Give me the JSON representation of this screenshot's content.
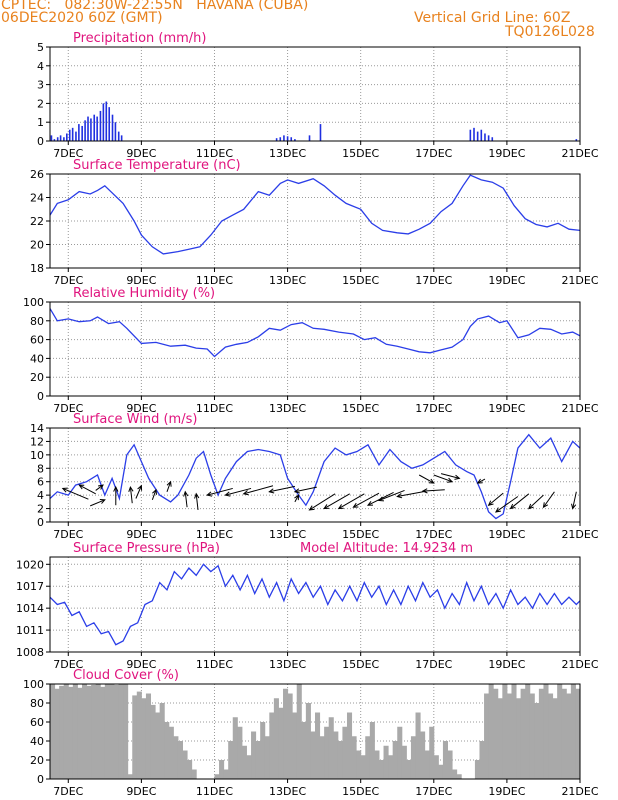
{
  "header": {
    "line1": "CPTEC:   082:30W-22:55N   HAVANA (CUBA)",
    "line2": "06DEC2020 60Z (GMT)",
    "grid_note": "Vertical Grid Line: 60Z",
    "code": "TQ0126L028"
  },
  "colors": {
    "header": "#e8821e",
    "title": "#e0147e",
    "line": "#2b3ee8",
    "precip": "#1f2fe0",
    "cloud": "#a9a9a9"
  },
  "chart_data": [
    {
      "id": "precip",
      "type": "bar",
      "title": "Precipitation (mm/h)",
      "xlabel": "",
      "ylabel": "",
      "xlim": [
        6.5,
        21
      ],
      "ylim": [
        0,
        5
      ],
      "x_ticks": [
        "7DEC",
        "9DEC",
        "11DEC",
        "13DEC",
        "15DEC",
        "17DEC",
        "19DEC",
        "21DEC"
      ],
      "y_ticks": [
        0,
        1,
        2,
        3,
        4,
        5
      ],
      "x": [
        6.54,
        6.62,
        6.71,
        6.79,
        6.88,
        6.96,
        7.04,
        7.12,
        7.21,
        7.29,
        7.38,
        7.46,
        7.54,
        7.62,
        7.71,
        7.79,
        7.88,
        7.96,
        8.04,
        8.12,
        8.21,
        8.29,
        8.38,
        8.46,
        12.7,
        12.8,
        12.9,
        13.0,
        13.1,
        13.2,
        13.6,
        13.9,
        18.0,
        18.1,
        18.2,
        18.3,
        18.4,
        18.5,
        18.6,
        20.9
      ],
      "values": [
        0.3,
        0.1,
        0.2,
        0.3,
        0.2,
        0.4,
        0.6,
        0.7,
        0.5,
        0.9,
        0.8,
        1.1,
        1.3,
        1.2,
        1.4,
        1.3,
        1.6,
        2.0,
        2.1,
        1.8,
        1.4,
        1.0,
        0.5,
        0.3,
        0.15,
        0.2,
        0.3,
        0.25,
        0.2,
        0.1,
        0.3,
        0.9,
        0.6,
        0.7,
        0.5,
        0.6,
        0.4,
        0.3,
        0.2,
        0.1
      ]
    },
    {
      "id": "temp",
      "type": "line",
      "title": "Surface Temperature (nC)",
      "xlabel": "",
      "ylabel": "",
      "xlim": [
        6.5,
        21
      ],
      "ylim": [
        18,
        26
      ],
      "x_ticks": [
        "7DEC",
        "9DEC",
        "11DEC",
        "13DEC",
        "15DEC",
        "17DEC",
        "19DEC",
        "21DEC"
      ],
      "y_ticks": [
        18,
        20,
        22,
        24,
        26
      ],
      "series": [
        {
          "x": [
            6.5,
            6.7,
            7.0,
            7.3,
            7.6,
            7.8,
            8.0,
            8.2,
            8.5,
            8.8,
            9.0,
            9.3,
            9.6,
            10.0,
            10.3,
            10.6,
            10.9,
            11.2,
            11.5,
            11.8,
            12.2,
            12.5,
            12.8,
            13.0,
            13.3,
            13.7,
            14.0,
            14.3,
            14.6,
            15.0,
            15.3,
            15.6,
            16.0,
            16.3,
            16.6,
            16.9,
            17.2,
            17.5,
            17.8,
            18.0,
            18.3,
            18.6,
            18.9,
            19.2,
            19.5,
            19.8,
            20.1,
            20.4,
            20.7,
            21.0
          ],
          "y": [
            22.5,
            23.5,
            23.8,
            24.5,
            24.3,
            24.6,
            25.0,
            24.4,
            23.5,
            22.0,
            20.8,
            19.8,
            19.2,
            19.4,
            19.6,
            19.8,
            20.8,
            22.0,
            22.5,
            23.0,
            24.5,
            24.2,
            25.2,
            25.5,
            25.2,
            25.6,
            25.0,
            24.2,
            23.5,
            23.0,
            21.8,
            21.2,
            21.0,
            20.9,
            21.3,
            21.8,
            22.8,
            23.5,
            25.0,
            25.9,
            25.5,
            25.3,
            24.8,
            23.3,
            22.2,
            21.7,
            21.5,
            21.8,
            21.3,
            21.2
          ]
        }
      ]
    },
    {
      "id": "rh",
      "type": "line",
      "title": "Relative Humidity (%)",
      "xlabel": "",
      "ylabel": "",
      "xlim": [
        6.5,
        21
      ],
      "ylim": [
        0,
        100
      ],
      "x_ticks": [
        "7DEC",
        "9DEC",
        "11DEC",
        "13DEC",
        "15DEC",
        "17DEC",
        "19DEC",
        "21DEC"
      ],
      "y_ticks": [
        0,
        20,
        40,
        60,
        80,
        100
      ],
      "series": [
        {
          "x": [
            6.5,
            6.7,
            7.0,
            7.3,
            7.6,
            7.8,
            8.1,
            8.4,
            8.6,
            9.0,
            9.4,
            9.8,
            10.2,
            10.5,
            10.8,
            11.0,
            11.3,
            11.6,
            11.9,
            12.2,
            12.5,
            12.8,
            13.1,
            13.4,
            13.7,
            14.0,
            14.4,
            14.8,
            15.1,
            15.4,
            15.7,
            16.0,
            16.3,
            16.6,
            16.9,
            17.2,
            17.5,
            17.8,
            18.0,
            18.2,
            18.5,
            18.8,
            19.0,
            19.3,
            19.6,
            19.9,
            20.2,
            20.5,
            20.8,
            21.0
          ],
          "y": [
            93,
            80,
            82,
            79,
            80,
            84,
            77,
            79,
            72,
            56,
            57,
            53,
            54,
            51,
            50,
            42,
            52,
            55,
            57,
            63,
            72,
            70,
            76,
            78,
            72,
            71,
            68,
            66,
            60,
            62,
            55,
            53,
            50,
            47,
            46,
            49,
            52,
            60,
            74,
            82,
            85,
            78,
            80,
            62,
            65,
            72,
            71,
            66,
            68,
            64
          ]
        }
      ]
    },
    {
      "id": "wind",
      "type": "line",
      "title": "Surface Wind (m/s)",
      "xlabel": "",
      "ylabel": "",
      "xlim": [
        6.5,
        21
      ],
      "ylim": [
        0,
        14
      ],
      "x_ticks": [
        "7DEC",
        "9DEC",
        "11DEC",
        "13DEC",
        "15DEC",
        "17DEC",
        "19DEC",
        "21DEC"
      ],
      "y_ticks": [
        0,
        2,
        4,
        6,
        8,
        10,
        12,
        14
      ],
      "series": [
        {
          "x": [
            6.5,
            6.7,
            7.0,
            7.2,
            7.5,
            7.8,
            8.0,
            8.2,
            8.4,
            8.6,
            8.8,
            9.0,
            9.2,
            9.5,
            9.8,
            10.0,
            10.3,
            10.5,
            10.7,
            10.9,
            11.1,
            11.3,
            11.6,
            11.9,
            12.2,
            12.5,
            12.8,
            13.0,
            13.3,
            13.5,
            13.7,
            14.0,
            14.3,
            14.6,
            14.9,
            15.2,
            15.5,
            15.8,
            16.1,
            16.4,
            16.7,
            17.0,
            17.3,
            17.6,
            17.9,
            18.1,
            18.3,
            18.5,
            18.7,
            18.9,
            19.1,
            19.3,
            19.6,
            19.9,
            20.2,
            20.5,
            20.8,
            21.0
          ],
          "y": [
            3.5,
            4.5,
            4.0,
            5.5,
            6.0,
            7.0,
            4.0,
            6.5,
            3.5,
            10.0,
            11.5,
            9.0,
            6.5,
            4.0,
            3.0,
            4.0,
            7.0,
            9.5,
            10.5,
            7.0,
            4.0,
            6.5,
            9.0,
            10.5,
            10.8,
            10.5,
            10.0,
            6.5,
            4.0,
            2.5,
            4.5,
            9.0,
            11.0,
            10.0,
            10.5,
            11.5,
            8.5,
            10.8,
            9.0,
            8.0,
            8.5,
            9.5,
            10.5,
            8.5,
            7.5,
            7.0,
            4.5,
            1.5,
            0.5,
            1.2,
            6.0,
            11.0,
            13.0,
            11.0,
            12.5,
            9.0,
            12.0,
            11.0
          ]
        }
      ]
    },
    {
      "id": "pres",
      "type": "line",
      "title": "Surface Pressure (hPa)",
      "annotation": "Model Altitude: 14.9234 m",
      "xlabel": "",
      "ylabel": "",
      "xlim": [
        6.5,
        21
      ],
      "ylim": [
        1008,
        1021
      ],
      "x_ticks": [
        "7DEC",
        "9DEC",
        "11DEC",
        "13DEC",
        "15DEC",
        "17DEC",
        "19DEC",
        "21DEC"
      ],
      "y_ticks": [
        1008,
        1011,
        1014,
        1017,
        1020
      ],
      "series": [
        {
          "x": [
            6.5,
            6.7,
            6.9,
            7.1,
            7.3,
            7.5,
            7.7,
            7.9,
            8.1,
            8.3,
            8.5,
            8.7,
            8.9,
            9.1,
            9.3,
            9.5,
            9.7,
            9.9,
            10.1,
            10.3,
            10.5,
            10.7,
            10.9,
            11.1,
            11.3,
            11.5,
            11.7,
            11.9,
            12.1,
            12.3,
            12.5,
            12.7,
            12.9,
            13.1,
            13.3,
            13.5,
            13.7,
            13.9,
            14.1,
            14.3,
            14.5,
            14.7,
            14.9,
            15.1,
            15.3,
            15.5,
            15.7,
            15.9,
            16.1,
            16.3,
            16.5,
            16.7,
            16.9,
            17.1,
            17.3,
            17.5,
            17.7,
            17.9,
            18.1,
            18.3,
            18.5,
            18.7,
            18.9,
            19.1,
            19.3,
            19.5,
            19.7,
            19.9,
            20.1,
            20.3,
            20.5,
            20.7,
            20.9,
            21.0
          ],
          "y": [
            1015.5,
            1014.5,
            1014.8,
            1013.0,
            1013.5,
            1011.5,
            1012.0,
            1010.5,
            1010.8,
            1009.0,
            1009.5,
            1011.5,
            1012.0,
            1014.5,
            1015.0,
            1017.5,
            1016.5,
            1019.0,
            1018.0,
            1019.5,
            1018.5,
            1020.0,
            1019.0,
            1019.8,
            1017.0,
            1018.5,
            1016.5,
            1018.5,
            1016.0,
            1018.0,
            1015.5,
            1017.5,
            1015.0,
            1018.0,
            1016.0,
            1017.5,
            1015.5,
            1017.0,
            1014.5,
            1016.5,
            1015.0,
            1017.0,
            1015.0,
            1017.5,
            1015.5,
            1017.0,
            1014.5,
            1016.5,
            1014.5,
            1017.0,
            1015.0,
            1017.5,
            1015.5,
            1016.5,
            1014.0,
            1016.0,
            1014.5,
            1017.5,
            1015.0,
            1017.0,
            1014.5,
            1016.0,
            1014.0,
            1016.5,
            1014.5,
            1015.5,
            1014.0,
            1016.0,
            1014.5,
            1016.0,
            1014.5,
            1015.5,
            1014.5,
            1015.0
          ]
        }
      ]
    },
    {
      "id": "cloud",
      "type": "bar",
      "title": "Cloud Cover (%)",
      "xlabel": "",
      "ylabel": "",
      "xlim": [
        6.5,
        21
      ],
      "ylim": [
        0,
        100
      ],
      "x_ticks": [
        "7DEC",
        "9DEC",
        "11DEC",
        "13DEC",
        "15DEC",
        "17DEC",
        "19DEC",
        "21DEC"
      ],
      "y_ticks": [
        0,
        20,
        40,
        60,
        80,
        100
      ],
      "x": [
        6.5,
        6.625,
        6.75,
        6.875,
        7.0,
        7.125,
        7.25,
        7.375,
        7.5,
        7.625,
        7.75,
        7.875,
        8.0,
        8.125,
        8.25,
        8.375,
        8.5,
        8.625,
        8.75,
        8.875,
        9.0,
        9.125,
        9.25,
        9.375,
        9.5,
        9.625,
        9.75,
        9.875,
        10.0,
        10.125,
        10.25,
        10.375,
        10.5,
        10.625,
        10.75,
        10.875,
        11.0,
        11.125,
        11.25,
        11.375,
        11.5,
        11.625,
        11.75,
        11.875,
        12.0,
        12.125,
        12.25,
        12.375,
        12.5,
        12.625,
        12.75,
        12.875,
        13.0,
        13.125,
        13.25,
        13.375,
        13.5,
        13.625,
        13.75,
        13.875,
        14.0,
        14.125,
        14.25,
        14.375,
        14.5,
        14.625,
        14.75,
        14.875,
        15.0,
        15.125,
        15.25,
        15.375,
        15.5,
        15.625,
        15.75,
        15.875,
        16.0,
        16.125,
        16.25,
        16.375,
        16.5,
        16.625,
        16.75,
        16.875,
        17.0,
        17.125,
        17.25,
        17.375,
        17.5,
        17.625,
        17.75,
        17.875,
        18.0,
        18.125,
        18.25,
        18.375,
        18.5,
        18.625,
        18.75,
        18.875,
        19.0,
        19.125,
        19.25,
        19.375,
        19.5,
        19.625,
        19.75,
        19.875,
        20.0,
        20.125,
        20.25,
        20.375,
        20.5,
        20.625,
        20.75,
        20.875
      ],
      "values": [
        100,
        95,
        98,
        100,
        97,
        100,
        96,
        100,
        98,
        99,
        100,
        97,
        100,
        100,
        99,
        100,
        100,
        5,
        88,
        92,
        85,
        90,
        78,
        70,
        80,
        60,
        55,
        45,
        40,
        30,
        20,
        10,
        0,
        0,
        0,
        0,
        5,
        20,
        10,
        40,
        65,
        55,
        35,
        25,
        50,
        40,
        60,
        45,
        70,
        85,
        75,
        95,
        90,
        70,
        100,
        60,
        80,
        50,
        70,
        45,
        55,
        65,
        50,
        40,
        55,
        70,
        45,
        30,
        25,
        45,
        60,
        30,
        20,
        35,
        25,
        40,
        55,
        35,
        20,
        45,
        70,
        50,
        30,
        55,
        25,
        15,
        40,
        30,
        10,
        5,
        0,
        0,
        0,
        20,
        40,
        90,
        100,
        95,
        85,
        100,
        90,
        100,
        85,
        95,
        100,
        90,
        80,
        95,
        100,
        90,
        85,
        100,
        95,
        90,
        100,
        95
      ]
    }
  ]
}
